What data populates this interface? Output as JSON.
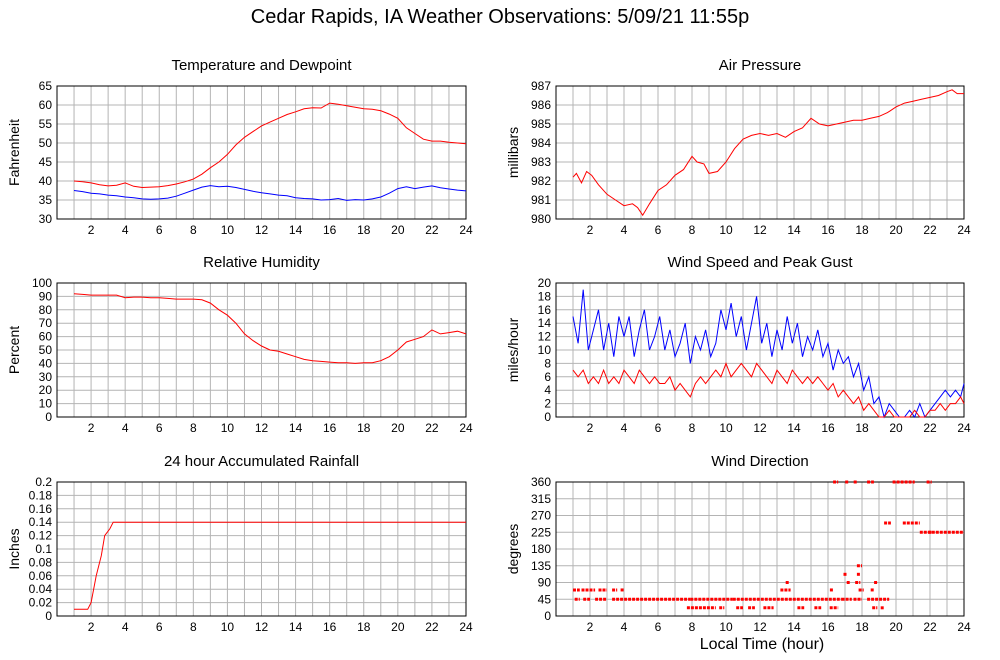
{
  "page": {
    "title": "Cedar Rapids, IA Weather Observations: 5/09/21 11:55p",
    "xlabel": "Local Time (hour)"
  },
  "colors": {
    "red": "#ff0000",
    "blue": "#0000ff",
    "grid": "#b4b4b4"
  },
  "chart_data": [
    {
      "type": "line",
      "title": "Temperature and Dewpoint",
      "ylabel": "Fahrenheit",
      "xlim": [
        0,
        24
      ],
      "ylim": [
        30,
        65
      ],
      "xticks": [
        2,
        4,
        6,
        8,
        10,
        12,
        14,
        16,
        18,
        20,
        22,
        24
      ],
      "yticks": [
        30,
        35,
        40,
        45,
        50,
        55,
        60,
        65
      ],
      "grid": true,
      "series": [
        {
          "color": "#ff0000",
          "x": [
            1,
            1.5,
            2,
            2.5,
            3,
            3.5,
            4,
            4.5,
            5,
            5.5,
            6,
            6.5,
            7,
            7.5,
            8,
            8.5,
            9,
            9.5,
            10,
            10.5,
            11,
            11.5,
            12,
            12.5,
            13,
            13.5,
            14,
            14.5,
            15,
            15.5,
            16,
            16.5,
            17,
            17.5,
            18,
            18.5,
            19,
            19.5,
            20,
            20.5,
            21,
            21.5,
            22,
            22.5,
            23,
            23.5,
            24
          ],
          "y": [
            40,
            39.8,
            39.5,
            39,
            38.7,
            38.9,
            39.5,
            38.6,
            38.3,
            38.4,
            38.5,
            38.8,
            39.2,
            39.8,
            40.5,
            41.8,
            43.5,
            45,
            47,
            49.5,
            51.5,
            53,
            54.5,
            55.5,
            56.5,
            57.5,
            58.2,
            59,
            59.3,
            59.2,
            60.5,
            60.2,
            59.8,
            59.4,
            59,
            58.9,
            58.5,
            57.6,
            56.5,
            54,
            52.5,
            51,
            50.5,
            50.5,
            50.2,
            50,
            49.8
          ]
        },
        {
          "color": "#0000ff",
          "x": [
            1,
            1.5,
            2,
            2.5,
            3,
            3.5,
            4,
            4.5,
            5,
            5.5,
            6,
            6.5,
            7,
            7.5,
            8,
            8.5,
            9,
            9.5,
            10,
            10.5,
            11,
            11.5,
            12,
            12.5,
            13,
            13.5,
            14,
            14.5,
            15,
            15.5,
            16,
            16.5,
            17,
            17.5,
            18,
            18.5,
            19,
            19.5,
            20,
            20.5,
            21,
            21.5,
            22,
            22.5,
            23,
            23.5,
            24
          ],
          "y": [
            37.5,
            37.2,
            36.8,
            36.6,
            36.3,
            36.1,
            35.8,
            35.6,
            35.3,
            35.2,
            35.3,
            35.5,
            36,
            36.8,
            37.6,
            38.4,
            38.8,
            38.5,
            38.6,
            38.3,
            37.8,
            37.3,
            36.9,
            36.6,
            36.3,
            36.1,
            35.6,
            35.4,
            35.3,
            35,
            35.1,
            35.4,
            34.9,
            35.1,
            35,
            35.3,
            35.8,
            36.8,
            38,
            38.5,
            38,
            38.4,
            38.7,
            38.2,
            37.9,
            37.6,
            37.4
          ]
        }
      ]
    },
    {
      "type": "line",
      "title": "Air Pressure",
      "ylabel": "millibars",
      "xlim": [
        0,
        24
      ],
      "ylim": [
        980,
        987
      ],
      "xticks": [
        2,
        4,
        6,
        8,
        10,
        12,
        14,
        16,
        18,
        20,
        22,
        24
      ],
      "yticks": [
        980,
        981,
        982,
        983,
        984,
        985,
        986,
        987
      ],
      "grid": true,
      "series": [
        {
          "color": "#ff0000",
          "x": [
            1,
            1.2,
            1.5,
            1.8,
            2.1,
            2.5,
            3,
            3.5,
            4,
            4.5,
            4.8,
            5.1,
            5.5,
            6,
            6.5,
            7,
            7.5,
            8,
            8.3,
            8.7,
            9,
            9.5,
            10,
            10.5,
            11,
            11.5,
            12,
            12.5,
            13,
            13.5,
            14,
            14.5,
            15,
            15.5,
            16,
            16.5,
            17,
            17.5,
            18,
            18.5,
            19,
            19.5,
            20,
            20.5,
            21,
            21.5,
            22,
            22.5,
            23,
            23.3,
            23.6,
            24
          ],
          "y": [
            982.2,
            982.4,
            981.9,
            982.5,
            982.3,
            981.8,
            981.3,
            981,
            980.7,
            980.8,
            980.6,
            980.2,
            980.8,
            981.5,
            981.8,
            982.3,
            982.6,
            983.3,
            983,
            982.9,
            982.4,
            982.5,
            983,
            983.7,
            984.2,
            984.4,
            984.5,
            984.4,
            984.5,
            984.3,
            984.6,
            984.8,
            985.3,
            985,
            984.9,
            985,
            985.1,
            985.2,
            985.2,
            985.3,
            985.4,
            985.6,
            985.9,
            986.1,
            986.2,
            986.3,
            986.4,
            986.5,
            986.7,
            986.8,
            986.6,
            986.6
          ]
        }
      ]
    },
    {
      "type": "line",
      "title": "Relative Humidity",
      "ylabel": "Percent",
      "xlim": [
        0,
        24
      ],
      "ylim": [
        0,
        100
      ],
      "xticks": [
        2,
        4,
        6,
        8,
        10,
        12,
        14,
        16,
        18,
        20,
        22,
        24
      ],
      "yticks": [
        0,
        10,
        20,
        30,
        40,
        50,
        60,
        70,
        80,
        90,
        100
      ],
      "grid": true,
      "series": [
        {
          "color": "#ff0000",
          "x": [
            1,
            1.5,
            2,
            2.5,
            3,
            3.5,
            4,
            4.5,
            5,
            5.5,
            6,
            6.5,
            7,
            7.5,
            8,
            8.5,
            9,
            9.5,
            10,
            10.5,
            11,
            11.5,
            12,
            12.5,
            13,
            13.5,
            14,
            14.5,
            15,
            15.5,
            16,
            16.5,
            17,
            17.5,
            18,
            18.5,
            19,
            19.5,
            20,
            20.5,
            21,
            21.5,
            22,
            22.5,
            23,
            23.5,
            24
          ],
          "y": [
            92,
            91.5,
            91,
            91,
            91,
            91,
            89,
            89.5,
            89.5,
            89,
            89,
            88.5,
            88,
            88,
            88,
            87.5,
            85,
            80,
            76,
            70,
            62,
            57,
            53,
            50,
            49,
            47,
            45,
            43,
            42,
            41.5,
            41,
            40.5,
            40.5,
            40,
            40.5,
            40.5,
            42,
            45,
            50,
            56,
            58,
            60,
            65,
            62,
            63,
            64,
            62
          ]
        }
      ]
    },
    {
      "type": "line",
      "title": "Wind Speed and Peak Gust",
      "ylabel": "miles/hour",
      "xlim": [
        0,
        24
      ],
      "ylim": [
        0,
        20
      ],
      "xticks": [
        2,
        4,
        6,
        8,
        10,
        12,
        14,
        16,
        18,
        20,
        22,
        24
      ],
      "yticks": [
        0,
        2,
        4,
        6,
        8,
        10,
        12,
        14,
        16,
        18,
        20
      ],
      "grid": true,
      "series": [
        {
          "color": "#0000ff",
          "x": [
            1,
            1.3,
            1.6,
            1.9,
            2.2,
            2.5,
            2.8,
            3.1,
            3.4,
            3.7,
            4,
            4.3,
            4.6,
            4.9,
            5.2,
            5.5,
            5.8,
            6.1,
            6.4,
            6.7,
            7,
            7.3,
            7.6,
            7.9,
            8.2,
            8.5,
            8.8,
            9.1,
            9.4,
            9.7,
            10,
            10.3,
            10.6,
            10.9,
            11.2,
            11.5,
            11.8,
            12.1,
            12.4,
            12.7,
            13,
            13.3,
            13.6,
            13.9,
            14.2,
            14.5,
            14.8,
            15.1,
            15.4,
            15.7,
            16,
            16.3,
            16.6,
            16.9,
            17.2,
            17.5,
            17.8,
            18.1,
            18.4,
            18.7,
            19,
            19.3,
            19.6,
            19.9,
            20.2,
            20.5,
            20.8,
            21.1,
            21.4,
            21.7,
            22,
            22.3,
            22.6,
            22.9,
            23.2,
            23.5,
            23.8,
            24
          ],
          "y": [
            15,
            11,
            19,
            10,
            13,
            16,
            10,
            14,
            9,
            15,
            12,
            15,
            9,
            13,
            16,
            10,
            12,
            15,
            10,
            13,
            9,
            11,
            14,
            8,
            12,
            10,
            13,
            9,
            11,
            16,
            13,
            17,
            12,
            15,
            10,
            14,
            18,
            11,
            14,
            9,
            13,
            10,
            15,
            11,
            14,
            9,
            12,
            10,
            13,
            9,
            11,
            7,
            10,
            8,
            9,
            6,
            8,
            4,
            6,
            2,
            3,
            0,
            2,
            1,
            0,
            0,
            1,
            0,
            2,
            0,
            1,
            2,
            3,
            4,
            3,
            4,
            3,
            5
          ]
        },
        {
          "color": "#ff0000",
          "x": [
            1,
            1.3,
            1.6,
            1.9,
            2.2,
            2.5,
            2.8,
            3.1,
            3.4,
            3.7,
            4,
            4.3,
            4.6,
            4.9,
            5.2,
            5.5,
            5.8,
            6.1,
            6.4,
            6.7,
            7,
            7.3,
            7.6,
            7.9,
            8.2,
            8.5,
            8.8,
            9.1,
            9.4,
            9.7,
            10,
            10.3,
            10.6,
            10.9,
            11.2,
            11.5,
            11.8,
            12.1,
            12.4,
            12.7,
            13,
            13.3,
            13.6,
            13.9,
            14.2,
            14.5,
            14.8,
            15.1,
            15.4,
            15.7,
            16,
            16.3,
            16.6,
            16.9,
            17.2,
            17.5,
            17.8,
            18.1,
            18.4,
            18.7,
            19,
            19.3,
            19.6,
            19.9,
            20.2,
            20.5,
            20.8,
            21.1,
            21.4,
            21.7,
            22,
            22.3,
            22.6,
            22.9,
            23.2,
            23.5,
            23.8,
            24
          ],
          "y": [
            7,
            6,
            7,
            5,
            6,
            5,
            7,
            5,
            6,
            5,
            7,
            6,
            5,
            7,
            6,
            5,
            6,
            5,
            5,
            6,
            4,
            5,
            4,
            3,
            5,
            6,
            5,
            6,
            7,
            6,
            8,
            6,
            7,
            8,
            7,
            6,
            8,
            7,
            6,
            5,
            7,
            6,
            5,
            7,
            6,
            5,
            6,
            5,
            6,
            5,
            4,
            5,
            3,
            4,
            3,
            2,
            3,
            1,
            2,
            1,
            0,
            0,
            1,
            0,
            0,
            0,
            0,
            1,
            0,
            0,
            1,
            1,
            2,
            1,
            2,
            2,
            3,
            2
          ]
        }
      ]
    },
    {
      "type": "line",
      "title": "24 hour Accumulated Rainfall",
      "ylabel": "Inches",
      "xlim": [
        0,
        24
      ],
      "ylim": [
        0,
        0.2
      ],
      "xticks": [
        2,
        4,
        6,
        8,
        10,
        12,
        14,
        16,
        18,
        20,
        22,
        24
      ],
      "yticks": [
        0,
        0.02,
        0.04,
        0.06,
        0.08,
        0.1,
        0.12,
        0.14,
        0.16,
        0.18,
        0.2
      ],
      "grid": true,
      "series": [
        {
          "color": "#ff0000",
          "x": [
            1,
            1.8,
            2,
            2.3,
            2.6,
            2.8,
            3.1,
            3.3,
            3.5,
            4,
            24
          ],
          "y": [
            0.01,
            0.01,
            0.02,
            0.06,
            0.09,
            0.12,
            0.13,
            0.14,
            0.14,
            0.14,
            0.14
          ]
        }
      ]
    },
    {
      "type": "scatter",
      "title": "Wind Direction",
      "ylabel": "degrees",
      "xlim": [
        0,
        24
      ],
      "ylim": [
        0,
        360
      ],
      "xticks": [
        2,
        4,
        6,
        8,
        10,
        12,
        14,
        16,
        18,
        20,
        22,
        24
      ],
      "yticks": [
        0,
        45,
        90,
        135,
        180,
        225,
        270,
        315,
        360
      ],
      "grid": true,
      "segments": [
        {
          "x0": 1.0,
          "x1": 1.4,
          "y": 70
        },
        {
          "x0": 1.1,
          "x1": 1.4,
          "y": 45
        },
        {
          "x0": 1.5,
          "x1": 2.3,
          "y": 70
        },
        {
          "x0": 1.6,
          "x1": 2.0,
          "y": 45
        },
        {
          "x0": 2.3,
          "x1": 3.0,
          "y": 45
        },
        {
          "x0": 2.5,
          "x1": 3.0,
          "y": 70
        },
        {
          "x0": 3.3,
          "x1": 3.6,
          "y": 70
        },
        {
          "x0": 3.3,
          "x1": 7.9,
          "y": 45
        },
        {
          "x0": 3.8,
          "x1": 4.0,
          "y": 70
        },
        {
          "x0": 7.7,
          "x1": 9.4,
          "y": 22
        },
        {
          "x0": 7.9,
          "x1": 10.4,
          "y": 45
        },
        {
          "x0": 9.6,
          "x1": 9.9,
          "y": 22
        },
        {
          "x0": 10.4,
          "x1": 16.8,
          "y": 45
        },
        {
          "x0": 10.6,
          "x1": 11.0,
          "y": 22
        },
        {
          "x0": 11.3,
          "x1": 11.7,
          "y": 22
        },
        {
          "x0": 12.2,
          "x1": 12.8,
          "y": 22
        },
        {
          "x0": 13.2,
          "x1": 13.8,
          "y": 70
        },
        {
          "x0": 14.2,
          "x1": 14.6,
          "y": 22
        },
        {
          "x0": 15.2,
          "x1": 15.6,
          "y": 22
        },
        {
          "x0": 16.1,
          "x1": 16.6,
          "y": 22
        },
        {
          "x0": 16.3,
          "x1": 16.6,
          "y": 360
        },
        {
          "x0": 16.8,
          "x1": 17.4,
          "y": 45
        },
        {
          "x0": 17.1,
          "x1": 17.3,
          "y": 90
        },
        {
          "x0": 17.5,
          "x1": 18.0,
          "y": 45
        },
        {
          "x0": 17.6,
          "x1": 17.9,
          "y": 90
        },
        {
          "x0": 17.7,
          "x1": 17.9,
          "y": 112
        },
        {
          "x0": 17.7,
          "x1": 18.0,
          "y": 135
        },
        {
          "x0": 17.8,
          "x1": 18.1,
          "y": 70
        },
        {
          "x0": 18.3,
          "x1": 19.6,
          "y": 45
        },
        {
          "x0": 18.6,
          "x1": 18.9,
          "y": 22
        },
        {
          "x0": 18.3,
          "x1": 18.7,
          "y": 360
        },
        {
          "x0": 19.1,
          "x1": 19.3,
          "y": 22
        },
        {
          "x0": 19.3,
          "x1": 19.7,
          "y": 250
        },
        {
          "x0": 19.8,
          "x1": 21.1,
          "y": 360
        },
        {
          "x0": 20.4,
          "x1": 21.4,
          "y": 250
        },
        {
          "x0": 21.4,
          "x1": 24.0,
          "y": 225
        },
        {
          "x0": 21.8,
          "x1": 22.1,
          "y": 360
        }
      ],
      "points": [
        {
          "x": 13.6,
          "y": 90
        },
        {
          "x": 16.2,
          "y": 70
        },
        {
          "x": 17.0,
          "y": 112
        },
        {
          "x": 17.1,
          "y": 360
        },
        {
          "x": 17.6,
          "y": 360
        },
        {
          "x": 18.6,
          "y": 70
        },
        {
          "x": 18.8,
          "y": 90
        },
        {
          "x": 22.0,
          "y": 225
        }
      ]
    }
  ]
}
